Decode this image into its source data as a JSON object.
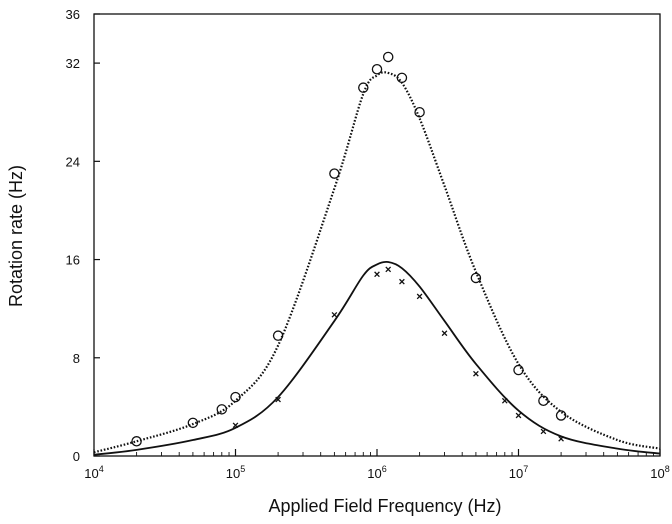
{
  "chart_data": {
    "type": "scatter",
    "title": "",
    "xlabel": "Applied Field Frequency (Hz)",
    "ylabel": "Rotation rate (Hz)",
    "x_scale": "log",
    "xlim": [
      10000,
      100000000
    ],
    "ylim": [
      0,
      36
    ],
    "x_ticks": [
      {
        "base": "10",
        "exp": "4"
      },
      {
        "base": "10",
        "exp": "5"
      },
      {
        "base": "10",
        "exp": "6"
      },
      {
        "base": "10",
        "exp": "7"
      },
      {
        "base": "10",
        "exp": "8"
      }
    ],
    "y_ticks": [
      "0",
      "8",
      "16",
      "24",
      "32",
      "36"
    ],
    "grid": false,
    "series": [
      {
        "marker": "circle",
        "x": [
          20000,
          50000,
          80000,
          100000,
          200000,
          500000,
          800000,
          1000000,
          1200000,
          1500000,
          2000000,
          5000000,
          10000000,
          15000000,
          20000000
        ],
        "y": [
          1.2,
          2.7,
          3.8,
          4.8,
          9.8,
          23.0,
          30.0,
          31.5,
          32.5,
          30.8,
          28.0,
          14.5,
          7.0,
          4.5,
          3.3
        ]
      },
      {
        "marker": "x",
        "x": [
          100000,
          200000,
          500000,
          1000000,
          1200000,
          1500000,
          2000000,
          3000000,
          5000000,
          8000000,
          10000000,
          15000000,
          20000000
        ],
        "y": [
          2.5,
          4.6,
          11.5,
          14.8,
          15.2,
          14.2,
          13.0,
          10.0,
          6.7,
          4.5,
          3.3,
          2.0,
          1.4
        ]
      },
      {
        "line": "dotted",
        "x": [
          10000,
          20000,
          50000,
          100000,
          200000,
          500000,
          800000,
          1000000,
          1200000,
          1500000,
          2000000,
          3000000,
          5000000,
          10000000,
          20000000,
          50000000,
          100000000
        ],
        "y": [
          0.3,
          1.2,
          2.6,
          4.5,
          9.0,
          21.8,
          29.5,
          31.0,
          31.2,
          30.4,
          27.5,
          22.0,
          15.0,
          7.5,
          3.6,
          1.3,
          0.6
        ]
      },
      {
        "line": "solid",
        "x": [
          10000,
          20000,
          50000,
          100000,
          200000,
          500000,
          800000,
          1000000,
          1200000,
          1500000,
          2000000,
          3000000,
          5000000,
          10000000,
          20000000,
          50000000,
          100000000
        ],
        "y": [
          0.1,
          0.5,
          1.3,
          2.3,
          4.8,
          11.0,
          14.7,
          15.6,
          15.8,
          15.3,
          13.8,
          11.0,
          7.5,
          3.7,
          1.6,
          0.6,
          0.2
        ]
      }
    ]
  }
}
